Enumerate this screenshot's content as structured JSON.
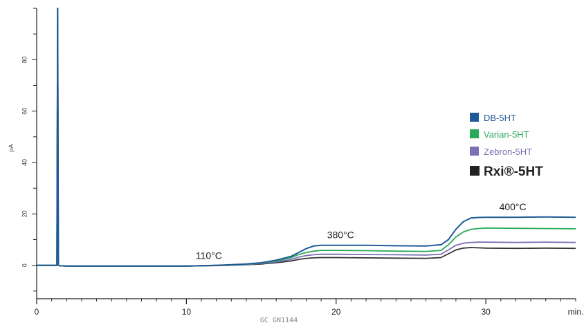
{
  "chart_data": {
    "type": "line",
    "title": "",
    "xlabel": "min.",
    "ylabel": "pA",
    "xlim": [
      0,
      36
    ],
    "ylim": [
      -13,
      100
    ],
    "x_ticks": [
      0,
      10,
      20,
      30
    ],
    "x_tick_labels": [
      "0",
      "10",
      "20",
      "30"
    ],
    "y_ticks": [
      0,
      20,
      40,
      60,
      80
    ],
    "y_tick_labels": [
      "0",
      "20",
      "40",
      "60",
      "80"
    ],
    "grid": false,
    "legend_position": "right",
    "series": [
      {
        "name": "DB-5HT",
        "color": "#1f5a96",
        "x": [
          0,
          1.35,
          1.4,
          1.45,
          1.55,
          2,
          10,
          12,
          14,
          15,
          16,
          17,
          17.5,
          18,
          18.5,
          19,
          20,
          22,
          24,
          26,
          27,
          27.5,
          28,
          28.5,
          29,
          29.5,
          30,
          32,
          34,
          36
        ],
        "y": [
          0,
          0,
          100,
          0,
          -0.2,
          -0.3,
          -0.3,
          0,
          0.5,
          1,
          2,
          3.5,
          5,
          6.5,
          7.5,
          7.8,
          7.8,
          7.8,
          7.6,
          7.5,
          8,
          10,
          14,
          17,
          18.4,
          18.6,
          18.7,
          18.7,
          18.8,
          18.7
        ]
      },
      {
        "name": "Varian-5HT",
        "color": "#2aa95a",
        "x": [
          0,
          1.35,
          1.4,
          1.45,
          1.55,
          2,
          10,
          12,
          14,
          15,
          16,
          17,
          17.5,
          18,
          18.5,
          19,
          20,
          22,
          24,
          26,
          27,
          27.5,
          28,
          28.5,
          29,
          29.5,
          30,
          32,
          34,
          36
        ],
        "y": [
          0,
          0,
          100,
          0,
          -0.2,
          -0.3,
          -0.3,
          0,
          0.4,
          0.9,
          1.7,
          3,
          4.2,
          5,
          5.5,
          5.8,
          5.8,
          5.7,
          5.5,
          5.4,
          5.8,
          8,
          11,
          13,
          14,
          14.3,
          14.5,
          14.4,
          14.3,
          14.2
        ]
      },
      {
        "name": "Zebron-5HT",
        "color": "#7b6fb5",
        "x": [
          0,
          1.35,
          1.4,
          1.45,
          1.55,
          2,
          10,
          12,
          14,
          15,
          16,
          17,
          17.5,
          18,
          18.5,
          19,
          20,
          22,
          24,
          26,
          27,
          27.5,
          28,
          28.5,
          29,
          29.5,
          30,
          32,
          34,
          36
        ],
        "y": [
          0,
          0,
          27,
          0,
          -0.2,
          -0.3,
          -0.3,
          0,
          0.3,
          0.7,
          1.3,
          2.3,
          3.2,
          3.8,
          4.1,
          4.3,
          4.3,
          4.2,
          4.1,
          4.0,
          4.3,
          6,
          7.8,
          8.6,
          8.9,
          9.0,
          9.0,
          8.9,
          9.0,
          8.9
        ]
      },
      {
        "name": "Rxi®-5HT",
        "color": "#333333",
        "x": [
          0,
          1.35,
          1.4,
          1.45,
          1.55,
          2,
          10,
          12,
          14,
          15,
          16,
          17,
          17.5,
          18,
          18.5,
          19,
          20,
          22,
          24,
          26,
          27,
          27.5,
          28,
          28.5,
          29,
          29.5,
          30,
          32,
          34,
          36
        ],
        "y": [
          0,
          0,
          100,
          0,
          -0.2,
          -0.3,
          -0.3,
          -0.1,
          0.2,
          0.5,
          1,
          1.7,
          2.3,
          2.7,
          2.9,
          3.0,
          3.0,
          2.9,
          2.8,
          2.7,
          3.0,
          4.5,
          6.0,
          6.7,
          6.9,
          6.8,
          6.7,
          6.6,
          6.7,
          6.6
        ]
      }
    ],
    "annotations": [
      {
        "text": "110°C",
        "x": 11.5,
        "y": 2.5
      },
      {
        "text": "380°C",
        "x": 20.3,
        "y": 10.5
      },
      {
        "text": "400°C",
        "x": 31.8,
        "y": 21.5
      }
    ],
    "footer": "GC GN1144"
  }
}
